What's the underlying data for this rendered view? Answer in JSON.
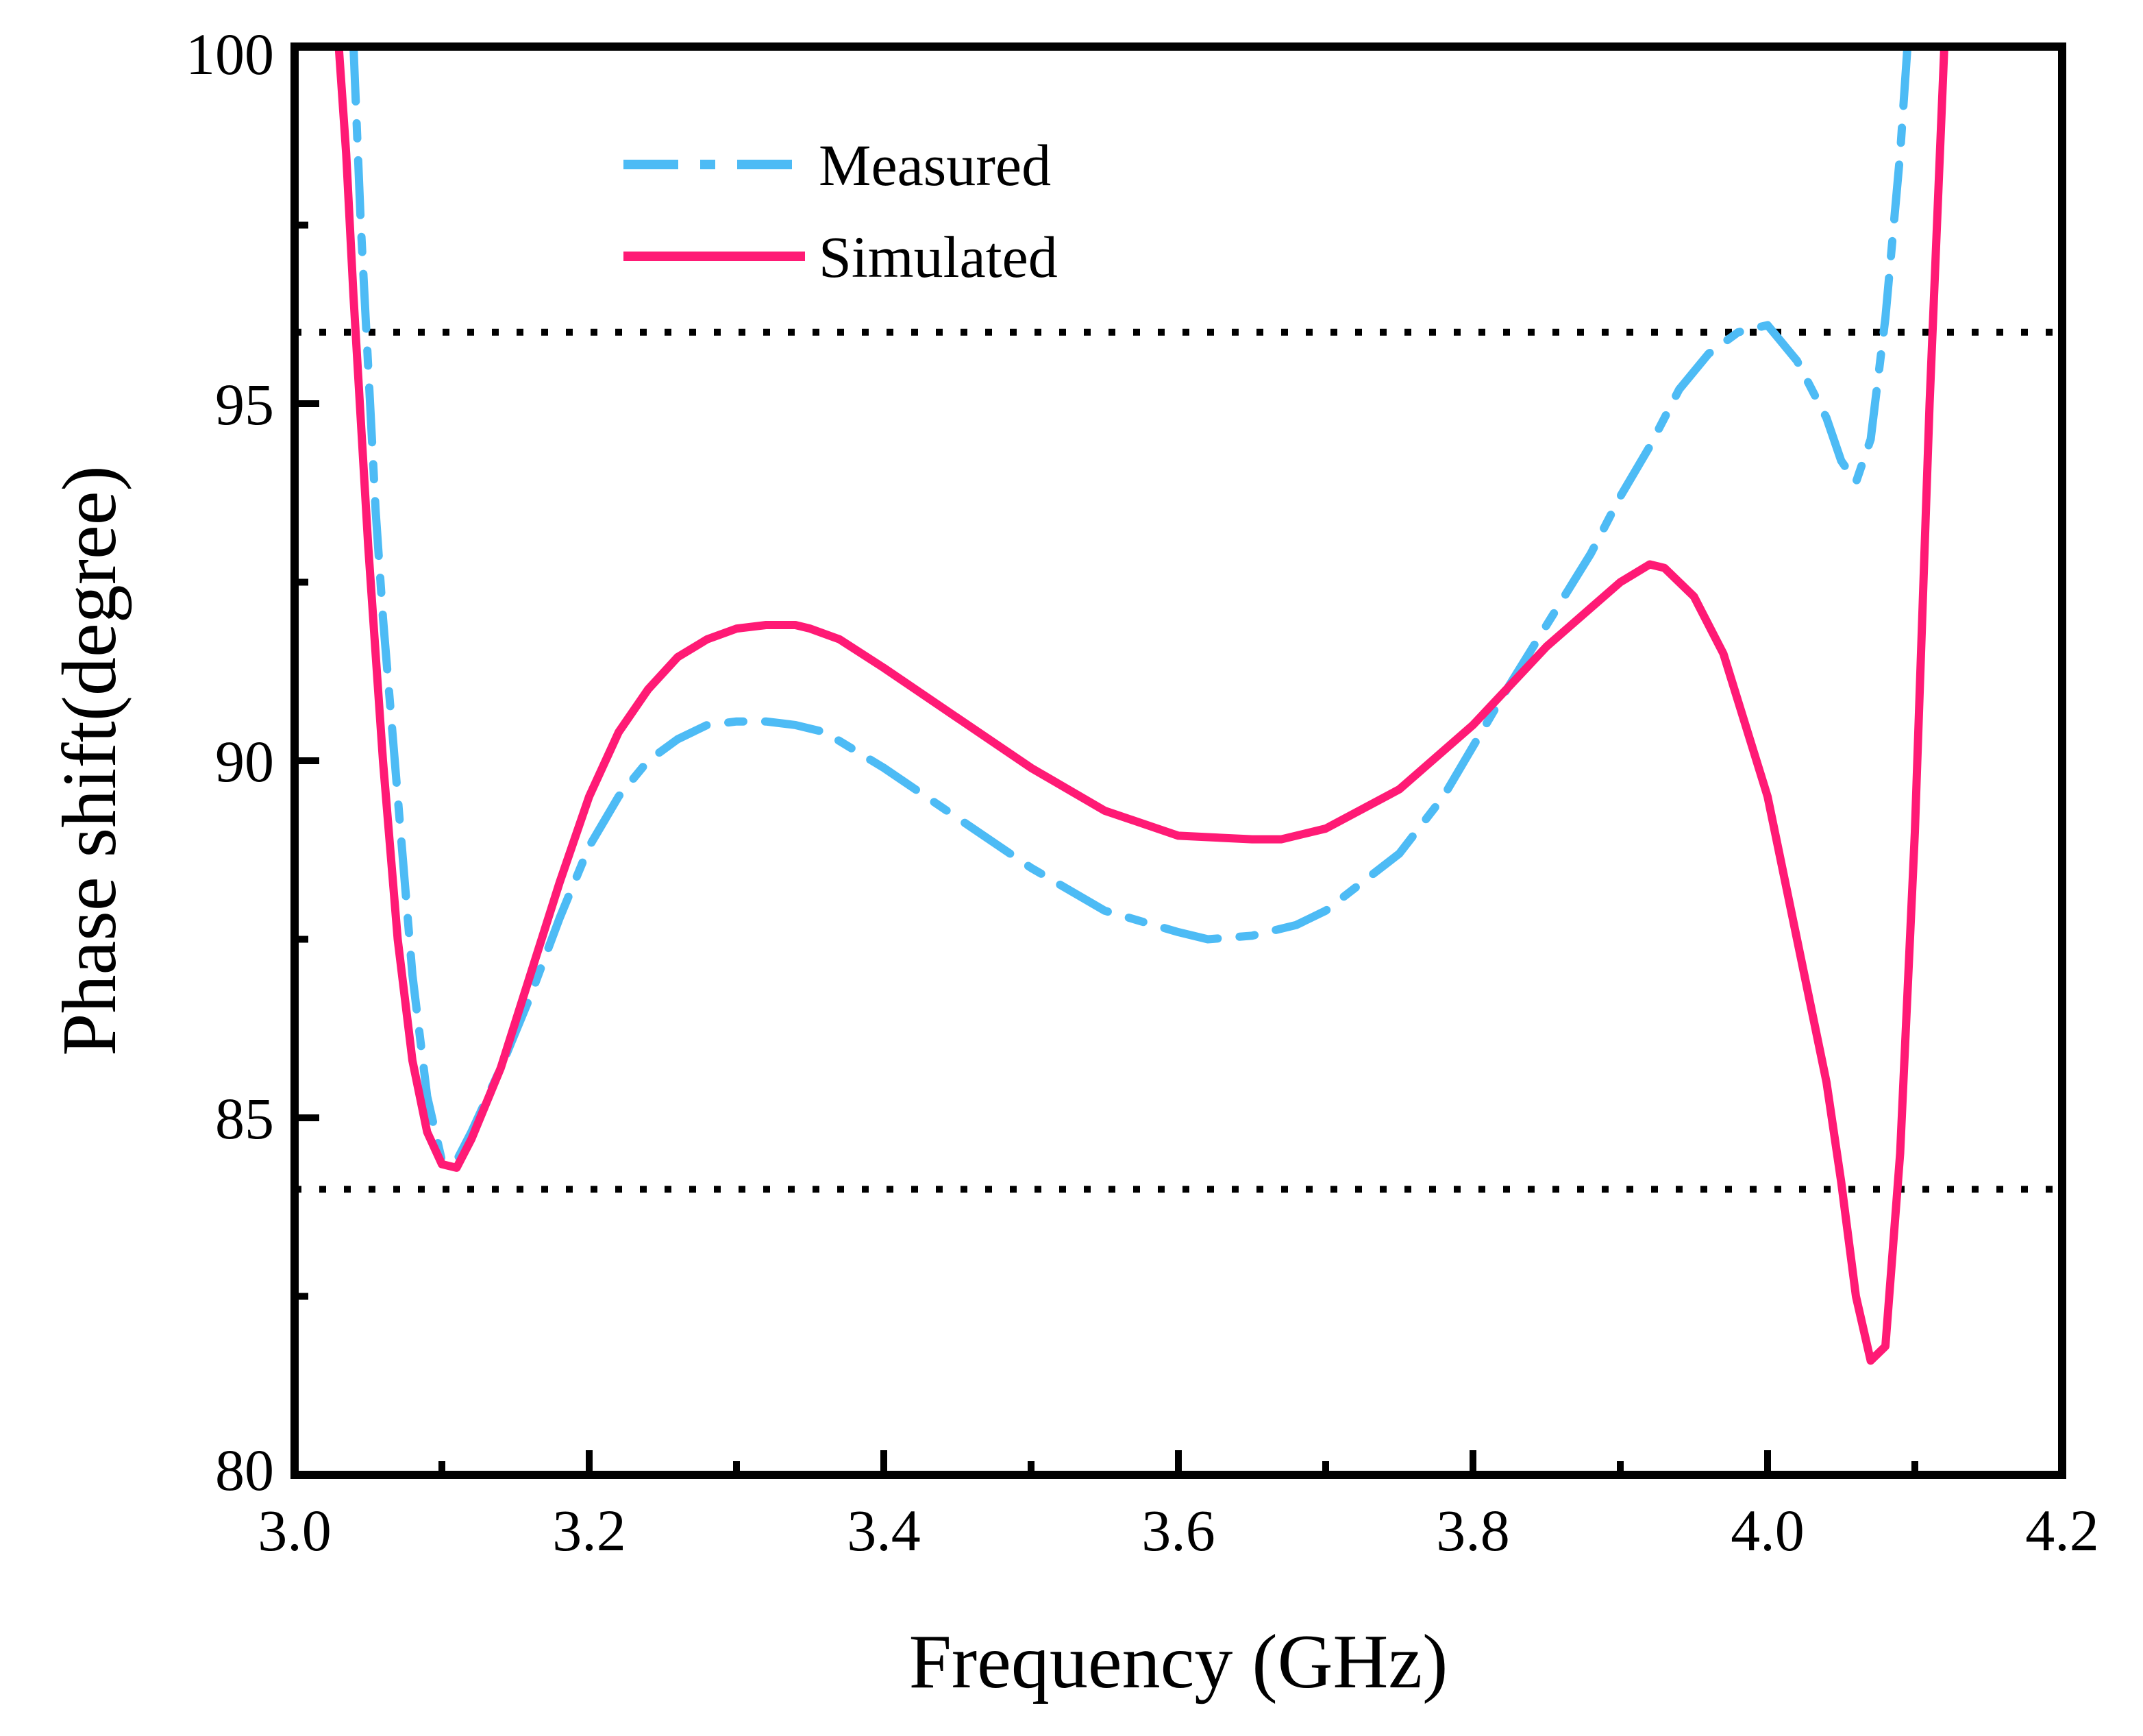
{
  "chart_data": {
    "type": "line",
    "title": "",
    "xlabel": "Frequency (GHz)",
    "ylabel": "Phase shift(degree)",
    "xlim": [
      3.0,
      4.2
    ],
    "ylim": [
      80,
      100
    ],
    "x_ticks": [
      3.0,
      3.2,
      3.4,
      3.6,
      3.8,
      4.0,
      4.2
    ],
    "x_tick_labels": [
      "3.0",
      "3.2",
      "3.4",
      "3.6",
      "3.8",
      "4.0",
      "4.2"
    ],
    "x_minor_ticks": [
      3.1,
      3.3,
      3.5,
      3.7,
      3.9,
      4.1
    ],
    "y_ticks": [
      80,
      85,
      90,
      95,
      100
    ],
    "y_tick_labels": [
      "80",
      "85",
      "90",
      "95",
      "100"
    ],
    "y_minor_ticks": [
      82.5,
      87.5,
      92.5,
      97.5
    ],
    "grid": false,
    "legend_position": "top-center",
    "reference_lines": [
      {
        "y": 96,
        "style": "dotted",
        "color": "#000000"
      },
      {
        "y": 84,
        "style": "dotted",
        "color": "#000000"
      }
    ],
    "series": [
      {
        "name": "Measured",
        "style": "dash-dot",
        "color": "#4DBBF5",
        "x": [
          3.04,
          3.045,
          3.05,
          3.055,
          3.06,
          3.07,
          3.08,
          3.09,
          3.1,
          3.11,
          3.12,
          3.14,
          3.16,
          3.18,
          3.2,
          3.22,
          3.24,
          3.26,
          3.28,
          3.3,
          3.32,
          3.34,
          3.36,
          3.4,
          3.45,
          3.5,
          3.55,
          3.6,
          3.62,
          3.65,
          3.68,
          3.7,
          3.75,
          3.78,
          3.8,
          3.82,
          3.85,
          3.88,
          3.9,
          3.92,
          3.94,
          3.96,
          3.98,
          4.0,
          4.02,
          4.04,
          4.05,
          4.06,
          4.07,
          4.08,
          4.09,
          4.095
        ],
        "y": [
          100,
          97.5,
          95.5,
          93.5,
          92.0,
          89.5,
          87.0,
          85.3,
          84.4,
          84.4,
          84.8,
          85.7,
          86.7,
          87.8,
          88.8,
          89.5,
          90.0,
          90.3,
          90.5,
          90.55,
          90.55,
          90.5,
          90.4,
          89.9,
          89.2,
          88.5,
          87.9,
          87.6,
          87.5,
          87.55,
          87.7,
          87.9,
          88.7,
          89.5,
          90.2,
          90.9,
          91.9,
          92.9,
          93.7,
          94.4,
          95.2,
          95.7,
          96.0,
          96.1,
          95.6,
          94.8,
          94.2,
          93.9,
          94.5,
          96.2,
          98.5,
          100
        ]
      },
      {
        "name": "Simulated",
        "style": "solid",
        "color": "#FF1A75",
        "x": [
          3.03,
          3.035,
          3.04,
          3.05,
          3.06,
          3.07,
          3.08,
          3.09,
          3.1,
          3.11,
          3.12,
          3.14,
          3.16,
          3.18,
          3.2,
          3.22,
          3.24,
          3.26,
          3.28,
          3.3,
          3.32,
          3.34,
          3.35,
          3.37,
          3.4,
          3.45,
          3.5,
          3.55,
          3.6,
          3.65,
          3.67,
          3.7,
          3.75,
          3.8,
          3.85,
          3.9,
          3.92,
          3.93,
          3.95,
          3.97,
          4.0,
          4.02,
          4.04,
          4.05,
          4.06,
          4.07,
          4.08,
          4.09,
          4.1,
          4.11,
          4.12
        ],
        "y": [
          100,
          98.5,
          96.5,
          93.0,
          90.0,
          87.5,
          85.8,
          84.8,
          84.35,
          84.3,
          84.7,
          85.7,
          87.0,
          88.3,
          89.5,
          90.4,
          91.0,
          91.45,
          91.7,
          91.85,
          91.9,
          91.9,
          91.85,
          91.7,
          91.3,
          90.6,
          89.9,
          89.3,
          88.95,
          88.9,
          88.9,
          89.05,
          89.6,
          90.5,
          91.6,
          92.5,
          92.75,
          92.7,
          92.3,
          91.5,
          89.5,
          87.5,
          85.5,
          84.1,
          82.5,
          81.6,
          81.8,
          84.5,
          89.0,
          95.0,
          100
        ]
      }
    ]
  }
}
